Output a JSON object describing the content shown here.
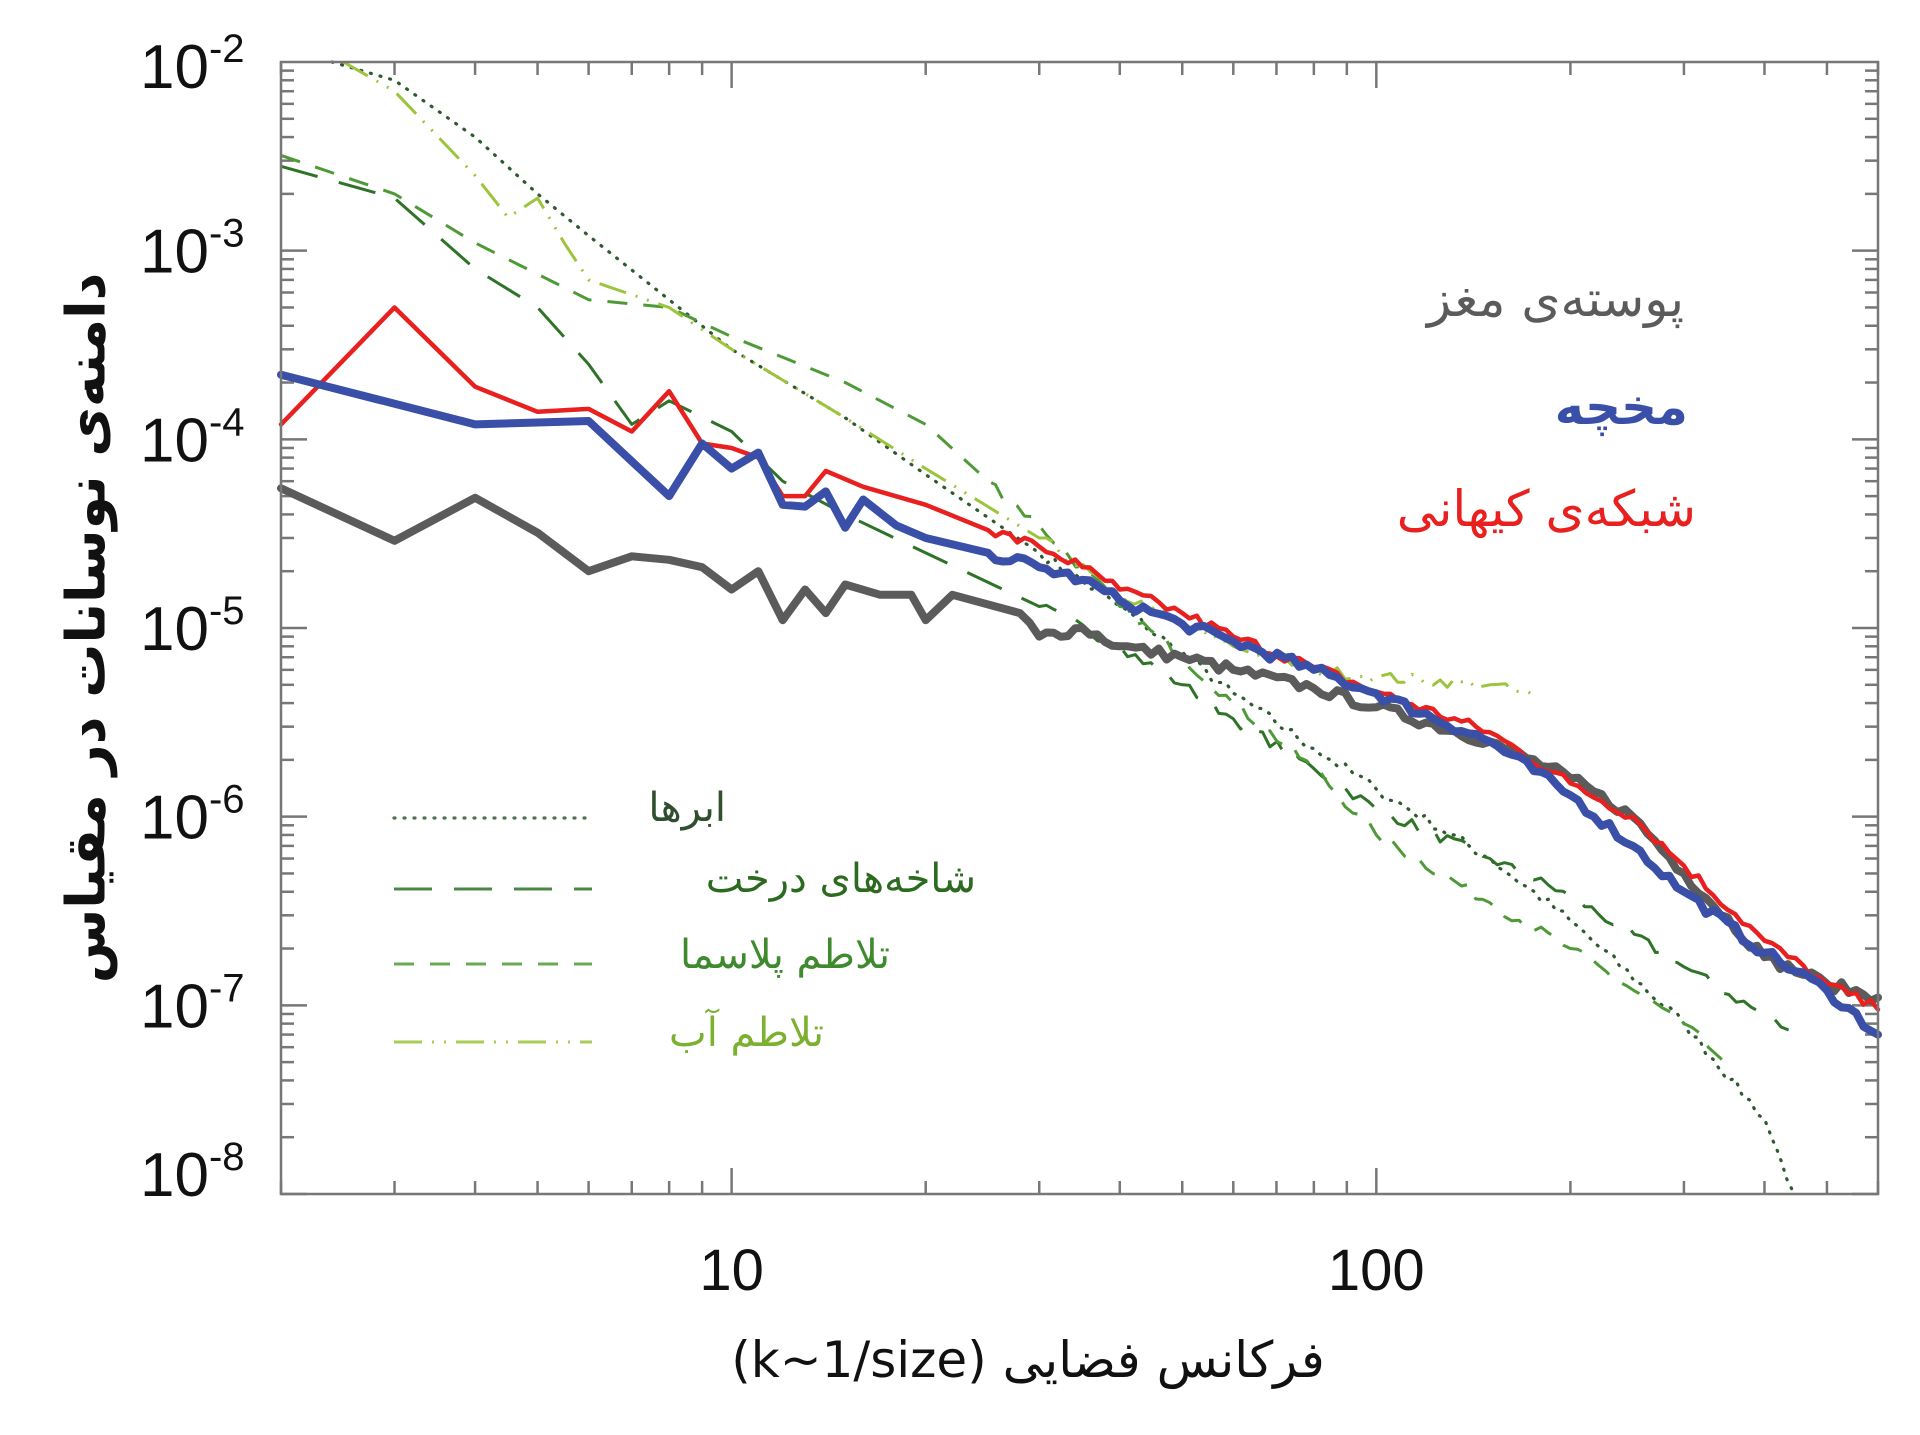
{
  "chart_data": {
    "type": "line",
    "xlabel": "فرکانس فضایی (k~1/size)",
    "ylabel": "دامنه‌ی نوسانات در مقیاس",
    "x_scale": "log",
    "y_scale": "log",
    "xlim": [
      2,
      600
    ],
    "ylim": [
      1e-08,
      0.01
    ],
    "grid": false,
    "x_ticks": [
      {
        "value": 10,
        "label": "10"
      },
      {
        "value": 100,
        "label": "100"
      }
    ],
    "y_ticks": [
      {
        "value": 0.01,
        "base": "10",
        "exp": "-2"
      },
      {
        "value": 0.001,
        "base": "10",
        "exp": "-3"
      },
      {
        "value": 0.0001,
        "base": "10",
        "exp": "-4"
      },
      {
        "value": 1e-05,
        "base": "10",
        "exp": "-5"
      },
      {
        "value": 1e-06,
        "base": "10",
        "exp": "-6"
      },
      {
        "value": 1e-07,
        "base": "10",
        "exp": "-7"
      },
      {
        "value": 1e-08,
        "base": "10",
        "exp": "-8"
      }
    ],
    "series": [
      {
        "name": "ابرها",
        "color": "#2f5a2f",
        "style": "dotted",
        "legend": "bottom-left",
        "points": [
          [
            2.4,
            0.01
          ],
          [
            3,
            0.008
          ],
          [
            4,
            0.004
          ],
          [
            5,
            0.002
          ],
          [
            6,
            0.0012
          ],
          [
            8,
            0.00055
          ],
          [
            10,
            0.0003
          ],
          [
            15,
            0.00013
          ],
          [
            20,
            6.5e-05
          ],
          [
            30,
            2.5e-05
          ],
          [
            40,
            1.3e-05
          ],
          [
            60,
            4.5e-06
          ],
          [
            80,
            2.3e-06
          ],
          [
            100,
            1.4e-06
          ],
          [
            150,
            6e-07
          ],
          [
            200,
            2.8e-07
          ],
          [
            300,
            8e-08
          ],
          [
            400,
            2.5e-08
          ],
          [
            445,
            1e-08
          ]
        ]
      },
      {
        "name": "شاخه‌های درخت",
        "color": "#2f7328",
        "style": "long-dash",
        "legend": "bottom-left",
        "points": [
          [
            2,
            0.0028
          ],
          [
            3,
            0.0019
          ],
          [
            4,
            0.0008
          ],
          [
            5,
            0.0005
          ],
          [
            6,
            0.00025
          ],
          [
            7,
            0.00012
          ],
          [
            8,
            0.00016
          ],
          [
            10,
            0.00011
          ],
          [
            12,
            6e-05
          ],
          [
            15,
            4e-05
          ],
          [
            20,
            2.5e-05
          ],
          [
            30,
            1.3e-05
          ],
          [
            40,
            8e-06
          ],
          [
            50,
            5e-06
          ],
          [
            60,
            3.3e-06
          ],
          [
            80,
            1.8e-06
          ],
          [
            100,
            1.1e-06
          ],
          [
            150,
            6e-07
          ],
          [
            200,
            3.8e-07
          ],
          [
            300,
            1.6e-07
          ],
          [
            436,
            7.4e-08
          ]
        ]
      },
      {
        "name": "تلاطم پلاسما",
        "color": "#4f9a38",
        "style": "dash",
        "legend": "bottom-left",
        "points": [
          [
            2,
            0.0032
          ],
          [
            3,
            0.002
          ],
          [
            4,
            0.0011
          ],
          [
            6,
            0.00055
          ],
          [
            8,
            0.0005
          ],
          [
            10,
            0.00035
          ],
          [
            15,
            0.0002
          ],
          [
            20,
            0.00012
          ],
          [
            25,
            6e-05
          ],
          [
            30,
            3.5e-05
          ],
          [
            40,
            1.3e-05
          ],
          [
            50,
            7e-06
          ],
          [
            60,
            4e-06
          ],
          [
            80,
            1.8e-06
          ],
          [
            100,
            8e-07
          ],
          [
            150,
            3.5e-07
          ],
          [
            200,
            2e-07
          ],
          [
            300,
            8e-08
          ],
          [
            347,
            5e-08
          ]
        ]
      },
      {
        "name": "تلاطم آب",
        "color": "#9cc43c",
        "style": "dash-dot",
        "legend": "bottom-left",
        "points": [
          [
            2.5,
            0.01
          ],
          [
            3,
            0.007
          ],
          [
            4,
            0.0025
          ],
          [
            4.5,
            0.0015
          ],
          [
            5,
            0.0019
          ],
          [
            5.5,
            0.0011
          ],
          [
            6,
            0.0007
          ],
          [
            8,
            0.0005
          ],
          [
            10,
            0.0003
          ],
          [
            15,
            0.00013
          ],
          [
            20,
            7e-05
          ],
          [
            30,
            3e-05
          ],
          [
            40,
            1.5e-05
          ],
          [
            60,
            8e-06
          ],
          [
            80,
            6e-06
          ],
          [
            100,
            5.5e-06
          ],
          [
            150,
            5e-06
          ],
          [
            177,
            4.3e-06
          ]
        ]
      },
      {
        "name": "پوسته‌ی مغز",
        "color": "#5b5b5b",
        "style": "solid",
        "points": [
          [
            2,
            5.5e-05
          ],
          [
            3,
            2.9e-05
          ],
          [
            4,
            4.9e-05
          ],
          [
            5,
            3.2e-05
          ],
          [
            6,
            2e-05
          ],
          [
            7,
            2.4e-05
          ],
          [
            8,
            2.3e-05
          ],
          [
            9,
            2.1e-05
          ],
          [
            10,
            1.6e-05
          ],
          [
            11,
            2e-05
          ],
          [
            12,
            1.1e-05
          ],
          [
            13,
            1.6e-05
          ],
          [
            14,
            1.2e-05
          ],
          [
            15,
            1.7e-05
          ],
          [
            17,
            1.5e-05
          ],
          [
            19,
            1.5e-05
          ],
          [
            20,
            1.1e-05
          ],
          [
            22,
            1.5e-05
          ],
          [
            28,
            1.2e-05
          ],
          [
            30,
            9e-06
          ],
          [
            35,
            1e-05
          ],
          [
            40,
            8e-06
          ],
          [
            50,
            7e-06
          ],
          [
            60,
            6e-06
          ],
          [
            80,
            4.8e-06
          ],
          [
            100,
            3.8e-06
          ],
          [
            150,
            2.5e-06
          ],
          [
            200,
            1.6e-06
          ],
          [
            250,
            1e-06
          ],
          [
            300,
            5e-07
          ],
          [
            400,
            1.8e-07
          ],
          [
            500,
            1.3e-07
          ],
          [
            600,
            1.1e-07
          ]
        ]
      },
      {
        "name": "مخچه",
        "color": "#3a4fa8",
        "style": "solid",
        "points": [
          [
            2,
            0.00022
          ],
          [
            4,
            0.00012
          ],
          [
            6,
            0.000125
          ],
          [
            8,
            5e-05
          ],
          [
            9,
            9.5e-05
          ],
          [
            10,
            7e-05
          ],
          [
            11,
            8.5e-05
          ],
          [
            12,
            4.5e-05
          ],
          [
            13,
            4.4e-05
          ],
          [
            14,
            5.3e-05
          ],
          [
            15,
            3.4e-05
          ],
          [
            16,
            4.8e-05
          ],
          [
            18,
            3.5e-05
          ],
          [
            20,
            3e-05
          ],
          [
            25,
            2.5e-05
          ],
          [
            30,
            2.1e-05
          ],
          [
            35,
            1.8e-05
          ],
          [
            40,
            1.4e-05
          ],
          [
            50,
            1.05e-05
          ],
          [
            60,
            8.5e-06
          ],
          [
            80,
            6e-06
          ],
          [
            100,
            4.5e-06
          ],
          [
            150,
            2.5e-06
          ],
          [
            200,
            1.3e-06
          ],
          [
            250,
            7e-07
          ],
          [
            300,
            4e-07
          ],
          [
            400,
            1.9e-07
          ],
          [
            500,
            1.2e-07
          ],
          [
            600,
            7e-08
          ]
        ]
      },
      {
        "name": "شبکه‌ی کیهانی",
        "color": "#e8201f",
        "style": "solid",
        "points": [
          [
            2,
            0.00012
          ],
          [
            3,
            0.0005
          ],
          [
            4,
            0.00019
          ],
          [
            5,
            0.00014
          ],
          [
            6,
            0.000145
          ],
          [
            7,
            0.00011
          ],
          [
            8,
            0.00018
          ],
          [
            9,
            9.5e-05
          ],
          [
            10,
            9e-05
          ],
          [
            11,
            8e-05
          ],
          [
            12,
            5e-05
          ],
          [
            13,
            5e-05
          ],
          [
            14,
            6.8e-05
          ],
          [
            16,
            5.6e-05
          ],
          [
            20,
            4.5e-05
          ],
          [
            25,
            3.3e-05
          ],
          [
            30,
            2.7e-05
          ],
          [
            35,
            2.1e-05
          ],
          [
            40,
            1.6e-05
          ],
          [
            50,
            1.2e-05
          ],
          [
            60,
            9e-06
          ],
          [
            80,
            6.2e-06
          ],
          [
            100,
            4.6e-06
          ],
          [
            150,
            2.8e-06
          ],
          [
            200,
            1.5e-06
          ],
          [
            250,
            1e-06
          ],
          [
            300,
            5.5e-07
          ],
          [
            400,
            2.2e-07
          ],
          [
            500,
            1.3e-07
          ],
          [
            600,
            9.5e-08
          ]
        ]
      }
    ]
  }
}
